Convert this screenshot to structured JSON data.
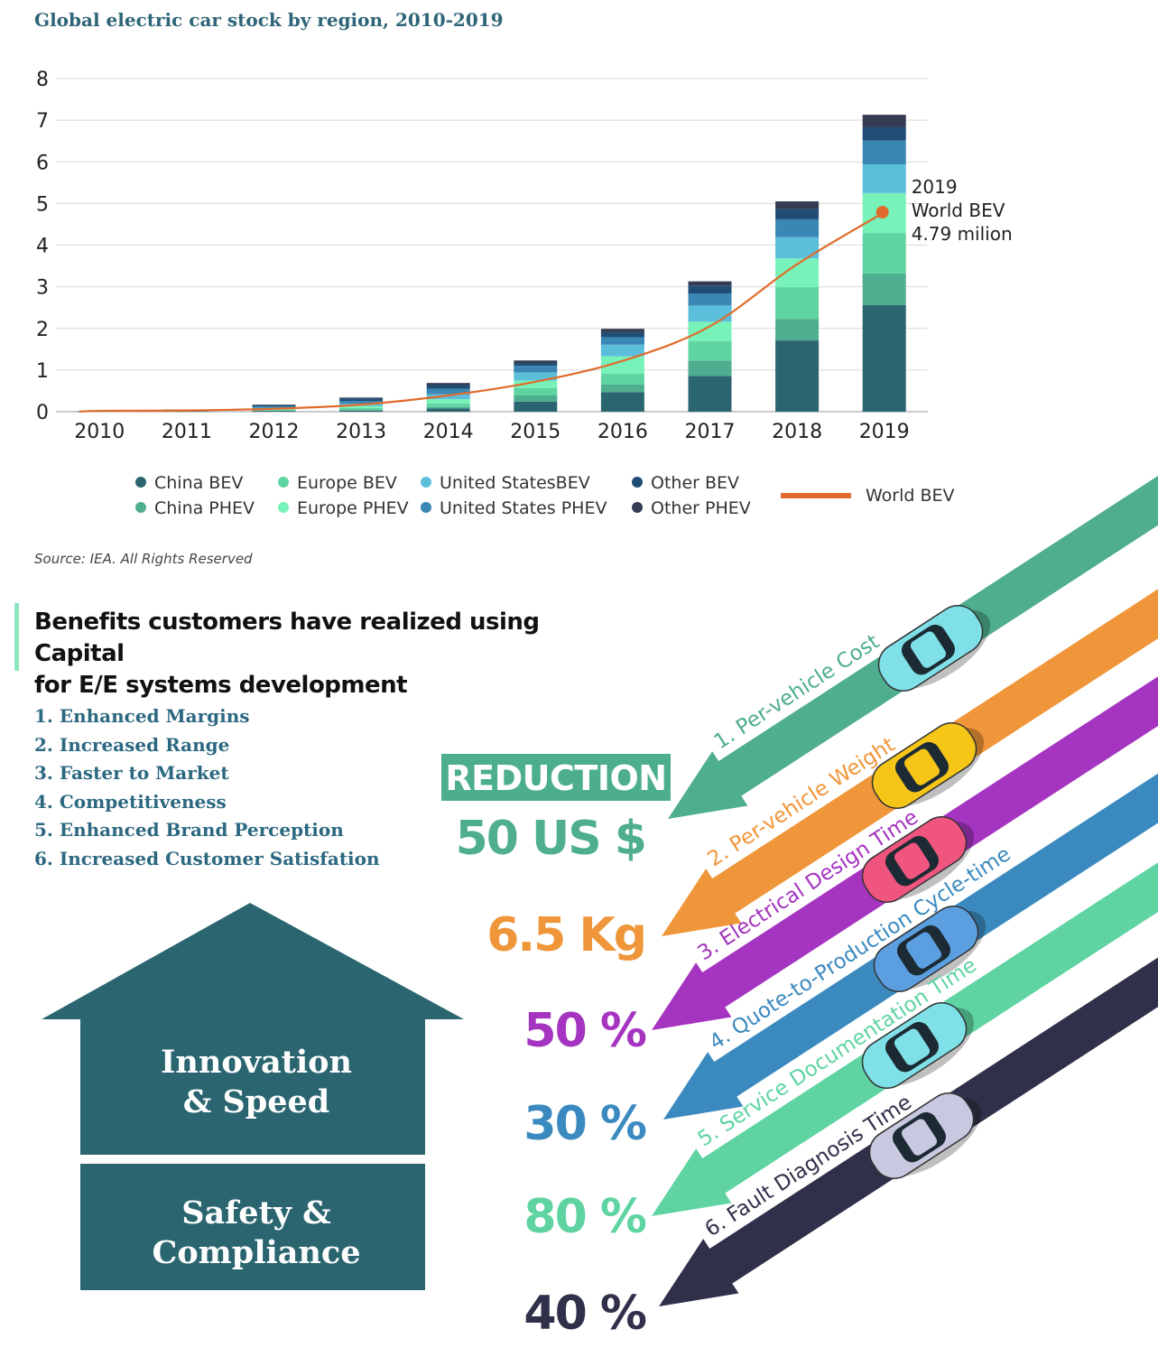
{
  "chart_data": {
    "type": "bar",
    "title": "Global electric car stock by region, 2010-2019",
    "categories": [
      "2010",
      "2011",
      "2012",
      "2013",
      "2014",
      "2015",
      "2016",
      "2017",
      "2018",
      "2019"
    ],
    "ylim": [
      0,
      8
    ],
    "yticks": [
      "0",
      "1",
      "2",
      "3",
      "4",
      "5",
      "6",
      "7",
      "8"
    ],
    "stacked": true,
    "grid": true,
    "series": [
      {
        "name": "China BEV",
        "color": "#2b6670",
        "values": [
          0.0,
          0.01,
          0.02,
          0.03,
          0.08,
          0.24,
          0.47,
          0.86,
          1.71,
          2.56
        ]
      },
      {
        "name": "China PHEV",
        "color": "#4fae8f",
        "values": [
          0.0,
          0.0,
          0.0,
          0.01,
          0.03,
          0.15,
          0.18,
          0.37,
          0.52,
          0.76
        ]
      },
      {
        "name": "Europe BEV",
        "color": "#5fd4a2",
        "values": [
          0.0,
          0.01,
          0.03,
          0.05,
          0.09,
          0.18,
          0.26,
          0.46,
          0.76,
          0.97
        ]
      },
      {
        "name": "Europe PHEV",
        "color": "#77f2b8",
        "values": [
          0.0,
          0.0,
          0.02,
          0.05,
          0.1,
          0.18,
          0.42,
          0.47,
          0.69,
          0.96
        ]
      },
      {
        "name": "United StatesBEV",
        "color": "#5bbfdb",
        "values": [
          0.01,
          0.01,
          0.02,
          0.05,
          0.12,
          0.19,
          0.28,
          0.39,
          0.51,
          0.69
        ]
      },
      {
        "name": "United States PHEV",
        "color": "#3a86b5",
        "values": [
          0.0,
          0.01,
          0.04,
          0.07,
          0.13,
          0.16,
          0.18,
          0.29,
          0.43,
          0.57
        ]
      },
      {
        "name": "Other BEV",
        "color": "#1f4d75",
        "values": [
          0.01,
          0.01,
          0.03,
          0.06,
          0.09,
          0.07,
          0.12,
          0.19,
          0.25,
          0.32
        ]
      },
      {
        "name": "Other PHEV",
        "color": "#353b52",
        "values": [
          0.0,
          0.0,
          0.01,
          0.02,
          0.05,
          0.06,
          0.08,
          0.1,
          0.18,
          0.3
        ]
      }
    ],
    "line": {
      "name": "World BEV",
      "color": "#e06b2c",
      "values": [
        0.02,
        0.03,
        0.07,
        0.17,
        0.39,
        0.72,
        1.22,
        2.05,
        3.54,
        4.79
      ]
    },
    "annotation": {
      "lines": [
        "2019",
        "World BEV",
        "4.79 milion"
      ]
    }
  },
  "source": "Source: IEA. All Rights Reserved",
  "benefits": {
    "title_line1": "Benefits customers have realized using Capital",
    "title_line2": "for E/E systems development",
    "items": [
      "1. Enhanced Margins",
      "2. Increased Range",
      "3. Faster to Market",
      "4. Competitiveness",
      "5. Enhanced Brand Perception",
      "6. Increased Customer Satisfation"
    ]
  },
  "house": {
    "top_line1": "Innovation",
    "top_line2": "& Speed",
    "bottom_line1": "Safety &",
    "bottom_line2": "Compliance",
    "color": "#2b6670"
  },
  "reduction": {
    "label": "REDUCTION",
    "items": [
      {
        "value": "50 US $",
        "label": "1. Per-vehicle Cost",
        "color": "#4fae8f"
      },
      {
        "value": "6.5 Kg",
        "label": "2. Per-vehicle Weight",
        "color": "#f0963a"
      },
      {
        "value": "50 %",
        "label": "3. Electrical Design Time",
        "color": "#a535c0"
      },
      {
        "value": "30 %",
        "label": "4. Quote-to-Production Cycle-time",
        "color": "#3b8abf"
      },
      {
        "value": "80 %",
        "label": "5. Service Documentation Time",
        "color": "#5fd4a2"
      },
      {
        "value": "40 %",
        "label": "6. Fault Diagnosis Time",
        "color": "#30304a"
      }
    ],
    "car_colors": [
      "#7fe0e8",
      "#f5c518",
      "#f0557f",
      "#5b9fe0",
      "#7fe0e8",
      "#c8c8e0"
    ]
  }
}
